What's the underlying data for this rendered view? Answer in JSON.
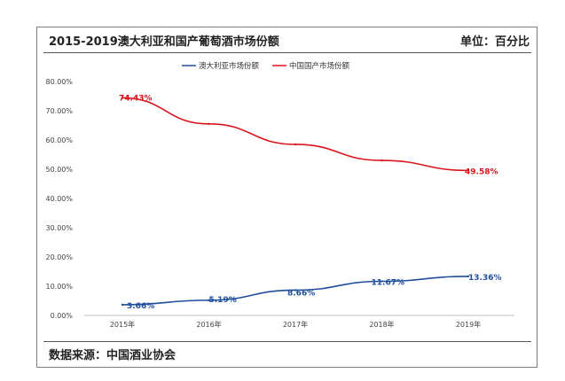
{
  "header": {
    "title": "2015-2019澳大利亚和国产葡萄酒市场份额",
    "unit": "单位：百分比"
  },
  "footer": {
    "source": "数据来源：中国酒业协会"
  },
  "chart_data": {
    "type": "line",
    "x": [
      "2015年",
      "2016年",
      "2017年",
      "2018年",
      "2019年"
    ],
    "ylim": [
      0,
      80
    ],
    "yticks": [
      "0.00%",
      "10.00%",
      "20.00%",
      "30.00%",
      "40.00%",
      "50.00%",
      "60.00%",
      "70.00%",
      "80.00%"
    ],
    "legend": "top-center",
    "grid": false,
    "series": [
      {
        "name": "澳大利亚市场份额",
        "color": "#1f4e9c",
        "values": [
          3.66,
          5.19,
          8.66,
          11.67,
          13.36
        ],
        "labels": [
          "3.66%",
          "5.19%",
          "8.66%",
          "11.67%",
          "13.36%"
        ]
      },
      {
        "name": "中国国产市场份额",
        "color": "#d9151c",
        "values": [
          74.43,
          65.5,
          58.5,
          53.0,
          49.58
        ],
        "labels": [
          "74.43%",
          "",
          "",
          "",
          "49.58%"
        ]
      }
    ]
  }
}
